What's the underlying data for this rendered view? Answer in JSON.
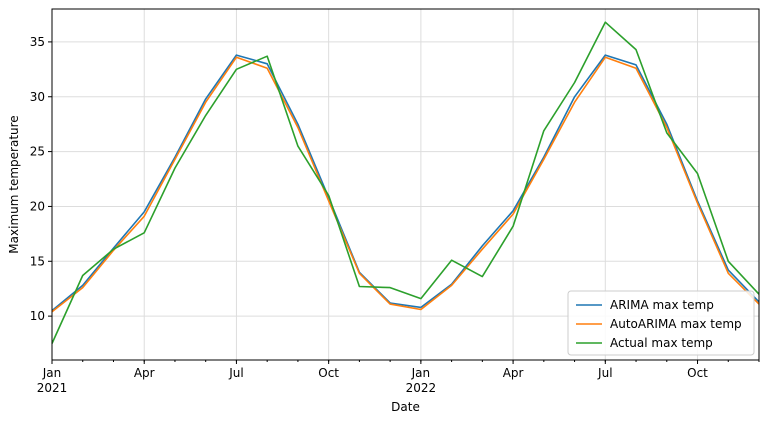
{
  "chart_data": {
    "type": "line",
    "title": "",
    "xlabel": "Date",
    "ylabel": "Maximum temperature",
    "x": [
      "2021-01",
      "2021-02",
      "2021-03",
      "2021-04",
      "2021-05",
      "2021-06",
      "2021-07",
      "2021-08",
      "2021-09",
      "2021-10",
      "2021-11",
      "2021-12",
      "2022-01",
      "2022-02",
      "2022-03",
      "2022-04",
      "2022-05",
      "2022-06",
      "2022-07",
      "2022-08",
      "2022-09",
      "2022-10",
      "2022-11",
      "2022-12"
    ],
    "xlim": [
      "2021-01",
      "2022-12"
    ],
    "ylim": [
      6,
      38
    ],
    "y_ticks": [
      10,
      15,
      20,
      25,
      30,
      35
    ],
    "x_ticks": [
      {
        "x": "2021-01",
        "label": "Jan",
        "sublabel": "2021"
      },
      {
        "x": "2021-04",
        "label": "Apr",
        "sublabel": ""
      },
      {
        "x": "2021-07",
        "label": "Jul",
        "sublabel": ""
      },
      {
        "x": "2021-10",
        "label": "Oct",
        "sublabel": ""
      },
      {
        "x": "2022-01",
        "label": "Jan",
        "sublabel": "2022"
      },
      {
        "x": "2022-04",
        "label": "Apr",
        "sublabel": ""
      },
      {
        "x": "2022-07",
        "label": "Jul",
        "sublabel": ""
      },
      {
        "x": "2022-10",
        "label": "Oct",
        "sublabel": ""
      }
    ],
    "grid": true,
    "legend_position": "lower-right",
    "series": [
      {
        "name": "ARIMA max temp",
        "color": "#1f77b4",
        "values": [
          10.5,
          12.8,
          16.2,
          19.5,
          24.5,
          29.8,
          33.8,
          33.0,
          27.5,
          20.8,
          14.0,
          11.2,
          10.8,
          12.9,
          16.4,
          19.6,
          24.5,
          30.0,
          33.8,
          32.9,
          27.5,
          20.5,
          14.2,
          11.3
        ]
      },
      {
        "name": "AutoARIMA max temp",
        "color": "#ff7f0e",
        "values": [
          10.4,
          12.6,
          16.0,
          19.1,
          24.3,
          29.5,
          33.6,
          32.6,
          27.2,
          20.5,
          13.9,
          11.1,
          10.6,
          12.8,
          16.1,
          19.3,
          24.3,
          29.5,
          33.6,
          32.6,
          27.2,
          20.3,
          13.9,
          11.1
        ]
      },
      {
        "name": "Actual max temp",
        "color": "#2ca02c",
        "values": [
          7.5,
          13.7,
          16.1,
          17.6,
          23.5,
          28.3,
          32.5,
          33.7,
          25.5,
          21.0,
          12.7,
          12.6,
          11.6,
          15.1,
          13.6,
          18.2,
          26.9,
          31.3,
          36.8,
          34.3,
          26.7,
          23.0,
          15.0,
          12.0
        ]
      }
    ]
  }
}
